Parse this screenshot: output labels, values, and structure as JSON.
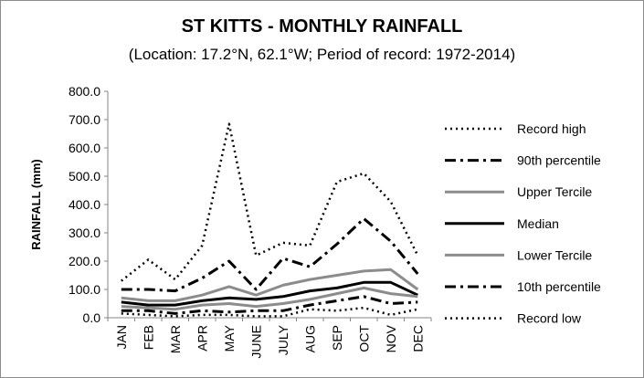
{
  "chart_data": {
    "type": "line",
    "title": "ST KITTS - MONTHLY RAINFALL",
    "subtitle": "(Location: 17.2°N, 62.1°W; Period of record: 1972-2014)",
    "xlabel": "",
    "ylabel": "RAINFALL (mm)",
    "ylim": [
      0,
      800
    ],
    "yticks": [
      "0.0",
      "100.0",
      "200.0",
      "300.0",
      "400.0",
      "500.0",
      "600.0",
      "700.0",
      "800.0"
    ],
    "categories": [
      "JAN",
      "FEB",
      "MAR",
      "APR",
      "MAY",
      "JUNE",
      "JULY",
      "AUG",
      "SEP",
      "OCT",
      "NOV",
      "DEC"
    ],
    "grid": false,
    "legend_position": "right",
    "series": [
      {
        "name": "Record high",
        "color": "#000000",
        "dash": "dotted",
        "values": [
          130,
          205,
          135,
          255,
          685,
          220,
          265,
          255,
          480,
          510,
          410,
          220
        ]
      },
      {
        "name": "90th percentile",
        "color": "#000000",
        "dash": "dashdot",
        "values": [
          100,
          100,
          95,
          140,
          200,
          100,
          210,
          180,
          260,
          350,
          270,
          155
        ]
      },
      {
        "name": "Upper Tercile",
        "color": "#8c8c8c",
        "dash": "solid",
        "values": [
          70,
          60,
          60,
          80,
          110,
          80,
          115,
          135,
          150,
          165,
          170,
          100
        ]
      },
      {
        "name": "Median",
        "color": "#000000",
        "dash": "solid",
        "values": [
          55,
          45,
          45,
          60,
          70,
          65,
          75,
          95,
          105,
          125,
          125,
          80
        ]
      },
      {
        "name": "Lower Tercile",
        "color": "#8c8c8c",
        "dash": "solid",
        "values": [
          40,
          35,
          30,
          45,
          50,
          40,
          50,
          65,
          85,
          105,
          85,
          75
        ]
      },
      {
        "name": "10th percentile",
        "color": "#000000",
        "dash": "dashdot",
        "values": [
          25,
          25,
          15,
          25,
          20,
          25,
          25,
          45,
          60,
          75,
          50,
          55
        ]
      },
      {
        "name": "Record low",
        "color": "#000000",
        "dash": "dotted",
        "values": [
          15,
          10,
          5,
          10,
          10,
          5,
          5,
          30,
          25,
          35,
          10,
          30
        ]
      }
    ]
  }
}
